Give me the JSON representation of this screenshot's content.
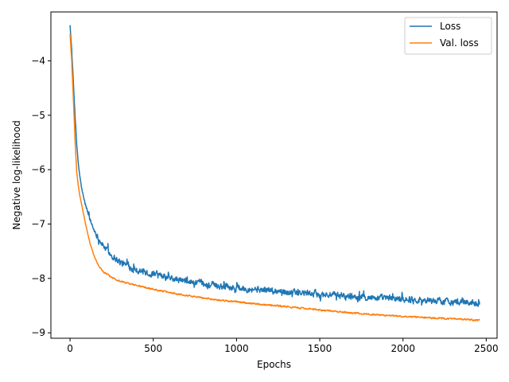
{
  "chart_data": {
    "type": "line",
    "title": "",
    "xlabel": "Epochs",
    "ylabel": "Negative log-likelihood",
    "xlim": [
      -115,
      2565
    ],
    "ylim": [
      -9.1,
      -3.1
    ],
    "xticks": [
      0,
      500,
      1000,
      1500,
      2000,
      2500
    ],
    "xtick_labels": [
      "0",
      "500",
      "1000",
      "1500",
      "2000",
      "2500"
    ],
    "yticks": [
      -9,
      -8,
      -7,
      -6,
      -5,
      -4
    ],
    "ytick_labels": [
      "−9",
      "−8",
      "−7",
      "−6",
      "−5",
      "−4"
    ],
    "grid": false,
    "legend_position": "top-right",
    "series": [
      {
        "name": "Loss",
        "color": "#1f77b4",
        "noise": 0.09,
        "x": [
          0,
          10,
          20,
          30,
          40,
          50,
          60,
          70,
          80,
          90,
          100,
          120,
          140,
          160,
          180,
          200,
          250,
          300,
          350,
          400,
          500,
          600,
          700,
          800,
          900,
          1000,
          1200,
          1400,
          1600,
          1800,
          2000,
          2200,
          2400,
          2460
        ],
        "y": [
          -3.35,
          -3.8,
          -4.4,
          -5.0,
          -5.55,
          -5.9,
          -6.15,
          -6.35,
          -6.5,
          -6.62,
          -6.72,
          -6.92,
          -7.08,
          -7.2,
          -7.31,
          -7.4,
          -7.58,
          -7.7,
          -7.78,
          -7.84,
          -7.93,
          -8.0,
          -8.06,
          -8.1,
          -8.14,
          -8.17,
          -8.22,
          -8.27,
          -8.31,
          -8.35,
          -8.38,
          -8.41,
          -8.44,
          -8.45
        ]
      },
      {
        "name": "Val. loss",
        "color": "#ff7f0e",
        "noise": 0.022,
        "x": [
          0,
          10,
          20,
          30,
          40,
          50,
          60,
          70,
          80,
          90,
          100,
          120,
          140,
          160,
          180,
          200,
          250,
          300,
          350,
          400,
          500,
          600,
          700,
          800,
          900,
          1000,
          1200,
          1400,
          1600,
          1800,
          2000,
          2200,
          2400,
          2460
        ],
        "y": [
          -3.5,
          -4.0,
          -4.7,
          -5.45,
          -6.05,
          -6.3,
          -6.5,
          -6.65,
          -6.8,
          -6.95,
          -7.1,
          -7.35,
          -7.55,
          -7.7,
          -7.8,
          -7.88,
          -7.98,
          -8.05,
          -8.09,
          -8.13,
          -8.2,
          -8.26,
          -8.31,
          -8.36,
          -8.4,
          -8.43,
          -8.49,
          -8.55,
          -8.61,
          -8.66,
          -8.7,
          -8.73,
          -8.76,
          -8.77
        ]
      }
    ]
  }
}
